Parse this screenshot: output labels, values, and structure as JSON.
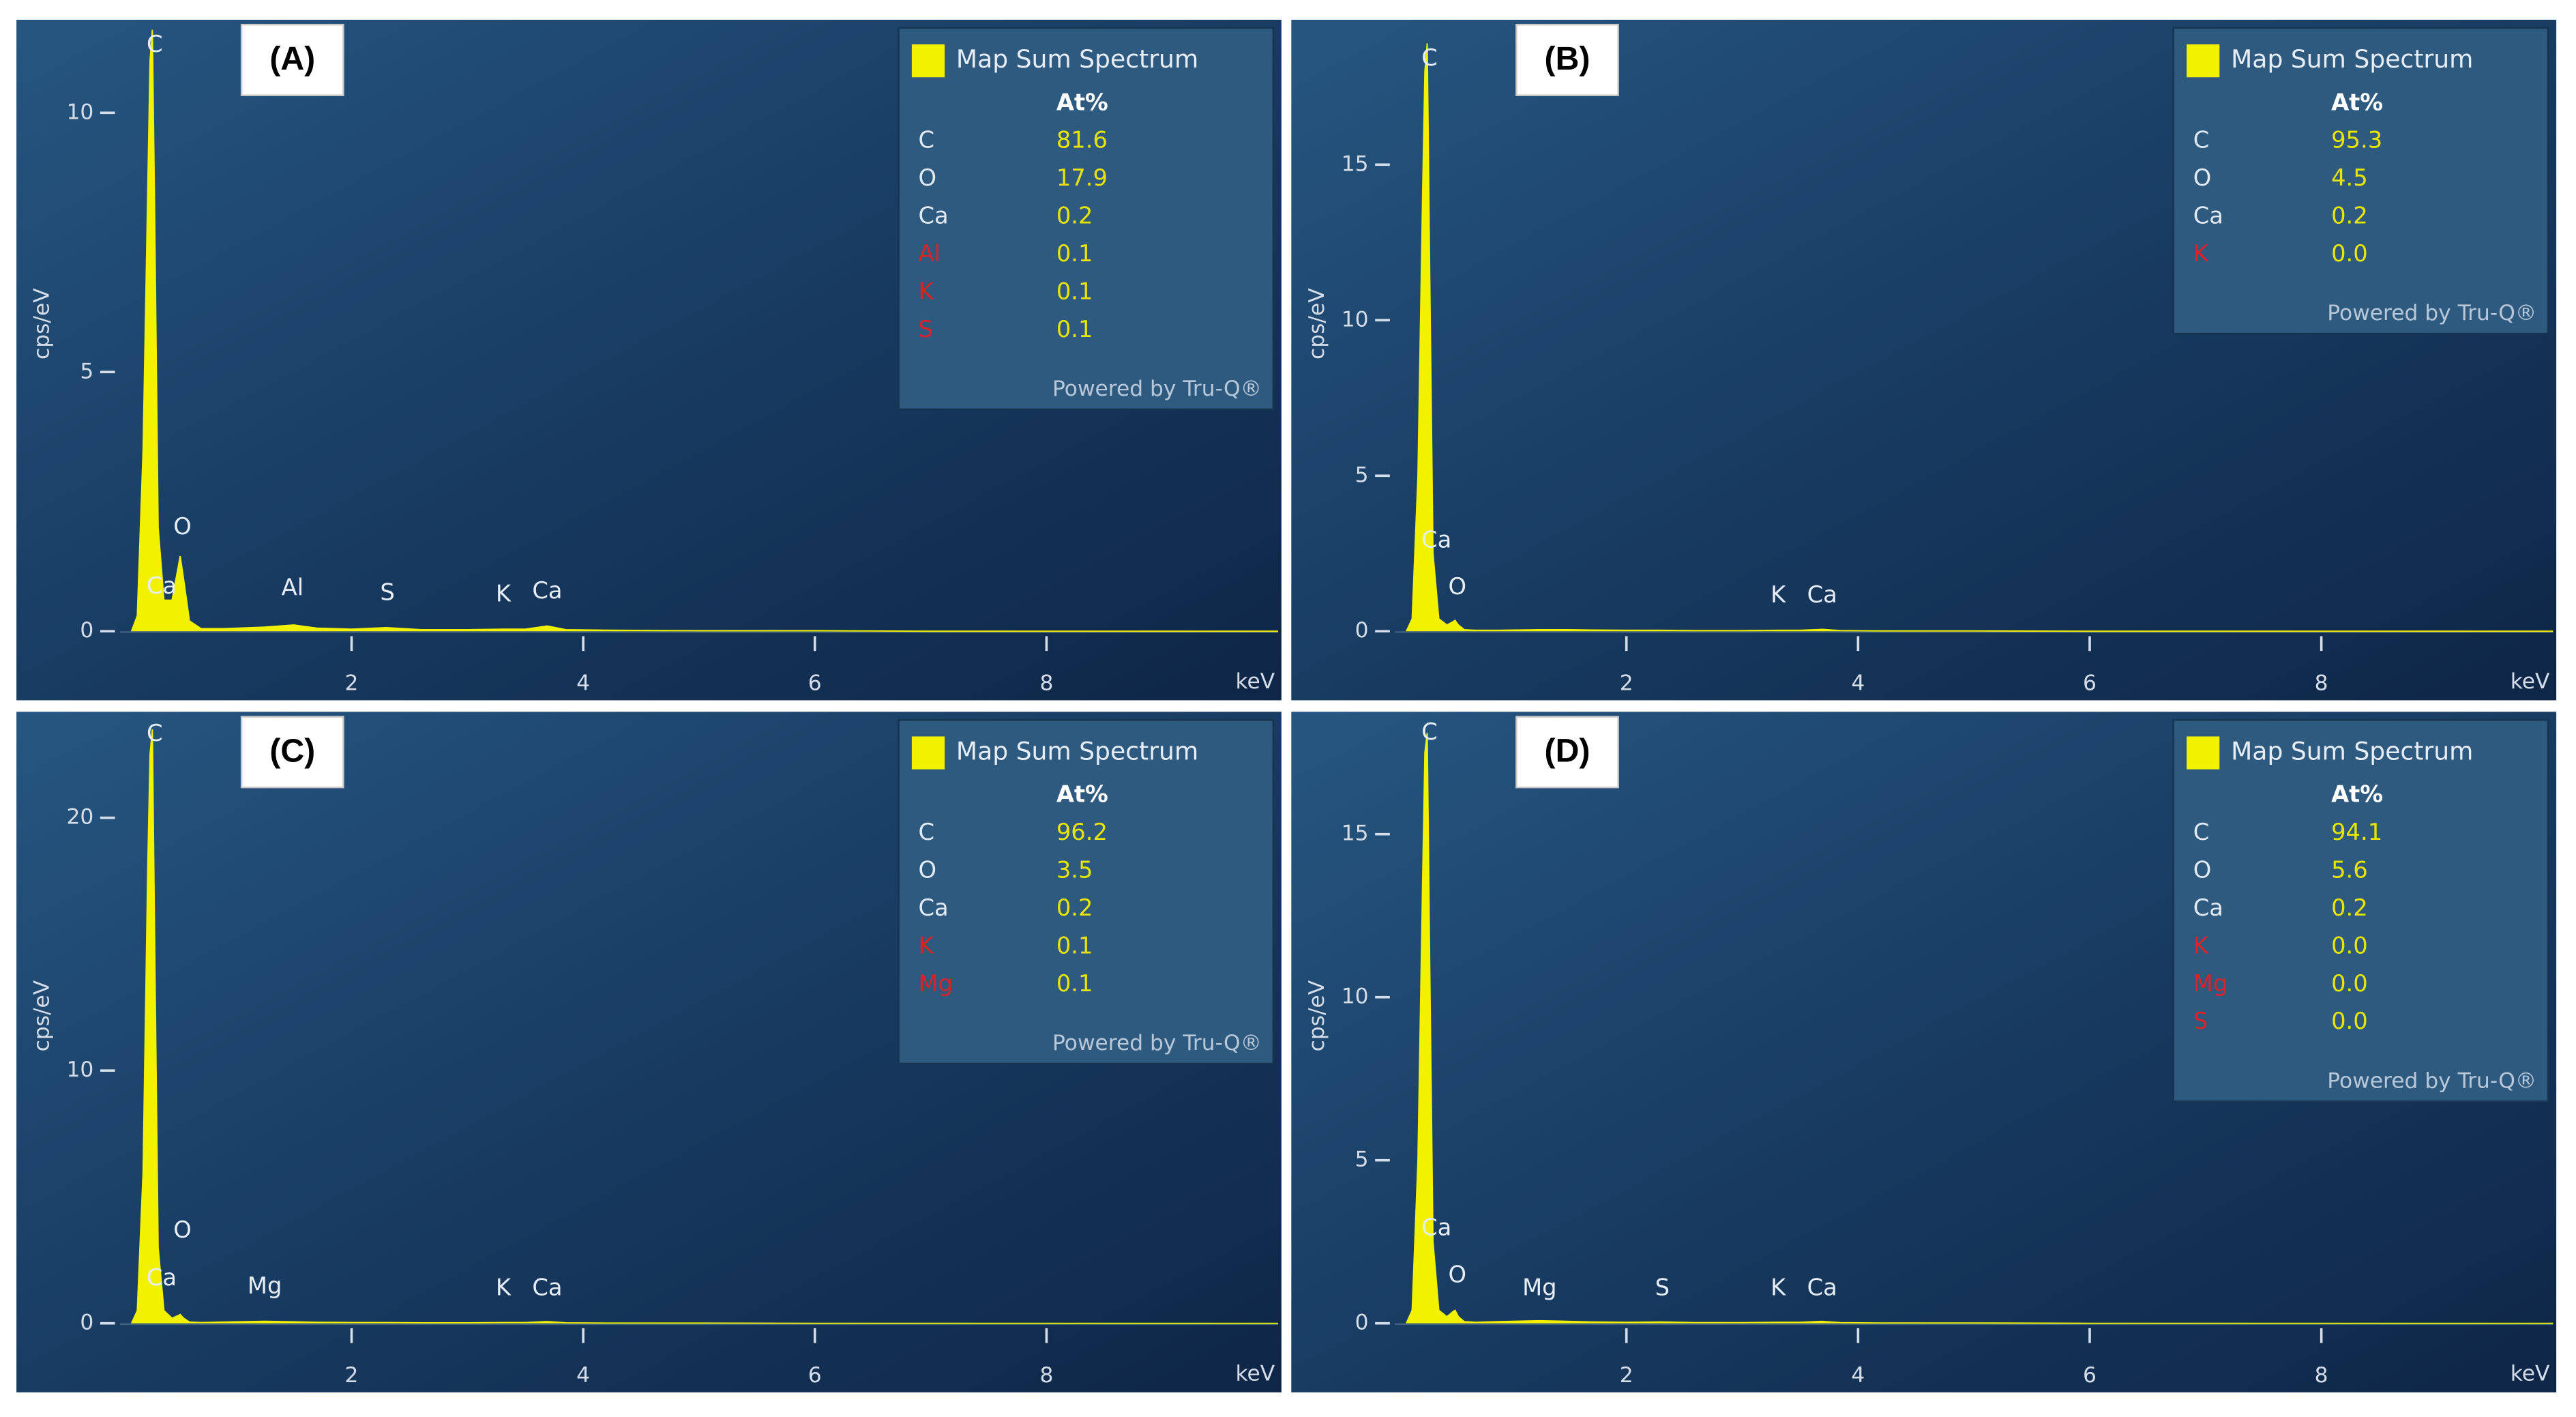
{
  "chart_data": [
    {
      "type": "area",
      "panel_label": "(A)",
      "ylabel": "cps/eV",
      "xlabel": "keV",
      "xlim": [
        0,
        10
      ],
      "xticks": [
        2,
        4,
        6,
        8
      ],
      "ylim": [
        0,
        11.7
      ],
      "yticks": [
        0,
        5,
        10
      ],
      "x": [
        0.1,
        0.15,
        0.2,
        0.24,
        0.26,
        0.28,
        0.3,
        0.33,
        0.38,
        0.45,
        0.5,
        0.52,
        0.55,
        0.6,
        0.7,
        0.9,
        1.25,
        1.5,
        1.7,
        2.0,
        2.3,
        2.6,
        3.0,
        3.31,
        3.5,
        3.69,
        3.85,
        4.2,
        5,
        6,
        7,
        8,
        9,
        10
      ],
      "series": [
        {
          "name": "Map Sum Spectrum",
          "color": "#f2f200",
          "values": [
            0,
            0.3,
            3.5,
            8.5,
            11,
            11.6,
            8,
            2,
            0.6,
            0.6,
            1.2,
            1.45,
            1.0,
            0.2,
            0.05,
            0.05,
            0.08,
            0.12,
            0.06,
            0.04,
            0.07,
            0.03,
            0.03,
            0.04,
            0.04,
            0.1,
            0.03,
            0.02,
            0.01,
            0.01,
            0,
            0,
            0,
            0
          ]
        }
      ],
      "peak_labels": [
        {
          "label": "C",
          "x": 0.3,
          "y": 11.3
        },
        {
          "label": "Ca",
          "x": 0.36,
          "y": 0.85
        },
        {
          "label": "O",
          "x": 0.54,
          "y": 2.0
        },
        {
          "label": "Al",
          "x": 1.49,
          "y": 0.82
        },
        {
          "label": "S",
          "x": 2.31,
          "y": 0.73
        },
        {
          "label": "K",
          "x": 3.31,
          "y": 0.7
        },
        {
          "label": "Ca",
          "x": 3.69,
          "y": 0.76
        }
      ],
      "quant": {
        "header": "At%",
        "elements": [
          "C",
          "O",
          "Ca",
          "Al",
          "K",
          "S"
        ],
        "element_colors": [
          "#e2e9f1",
          "#e2e9f1",
          "#e2e9f1",
          "#d8232a",
          "#d8232a",
          "#d8232a"
        ],
        "values": [
          81.6,
          17.9,
          0.2,
          0.1,
          0.1,
          0.1
        ],
        "value_labels": [
          "81.6",
          "17.9",
          "0.2",
          "0.1",
          "0.1",
          "0.1"
        ],
        "footer": "Powered by Tru-Q®"
      }
    },
    {
      "type": "area",
      "panel_label": "(B)",
      "ylabel": "cps/eV",
      "xlabel": "keV",
      "xlim": [
        0,
        10
      ],
      "xticks": [
        2,
        4,
        6,
        8
      ],
      "ylim": [
        0,
        19.5
      ],
      "yticks": [
        0,
        5,
        10,
        15
      ],
      "x": [
        0.1,
        0.15,
        0.2,
        0.24,
        0.26,
        0.28,
        0.3,
        0.33,
        0.38,
        0.45,
        0.5,
        0.52,
        0.55,
        0.6,
        0.7,
        0.9,
        1.25,
        1.5,
        1.7,
        2.0,
        2.3,
        2.6,
        3.0,
        3.31,
        3.5,
        3.69,
        3.85,
        4.2,
        5,
        6,
        7,
        8,
        9,
        10
      ],
      "series": [
        {
          "name": "Map Sum Spectrum",
          "color": "#f2f200",
          "values": [
            0,
            0.4,
            5,
            14,
            18,
            18.9,
            12,
            2.5,
            0.4,
            0.2,
            0.3,
            0.35,
            0.2,
            0.05,
            0.03,
            0.03,
            0.05,
            0.05,
            0.04,
            0.03,
            0.03,
            0.02,
            0.02,
            0.03,
            0.03,
            0.06,
            0.02,
            0.01,
            0.01,
            0,
            0,
            0,
            0,
            0
          ]
        }
      ],
      "peak_labels": [
        {
          "label": "C",
          "x": 0.3,
          "y": 18.4
        },
        {
          "label": "Ca",
          "x": 0.36,
          "y": 2.9
        },
        {
          "label": "O",
          "x": 0.54,
          "y": 1.4
        },
        {
          "label": "K",
          "x": 3.31,
          "y": 1.13
        },
        {
          "label": "Ca",
          "x": 3.69,
          "y": 1.13
        }
      ],
      "quant": {
        "header": "At%",
        "elements": [
          "C",
          "O",
          "Ca",
          "K"
        ],
        "element_colors": [
          "#e2e9f1",
          "#e2e9f1",
          "#e2e9f1",
          "#d8232a"
        ],
        "values": [
          95.3,
          4.5,
          0.2,
          0
        ],
        "value_labels": [
          "95.3",
          "4.5",
          "0.2",
          "0.0"
        ],
        "footer": "Powered by Tru-Q®"
      }
    },
    {
      "type": "area",
      "panel_label": "(C)",
      "ylabel": "cps/eV",
      "xlabel": "keV",
      "xlim": [
        0,
        10
      ],
      "xticks": [
        2,
        4,
        6,
        8
      ],
      "ylim": [
        0,
        24
      ],
      "yticks": [
        0,
        10,
        20
      ],
      "x": [
        0.1,
        0.15,
        0.2,
        0.24,
        0.26,
        0.28,
        0.3,
        0.33,
        0.38,
        0.45,
        0.5,
        0.52,
        0.55,
        0.6,
        0.7,
        0.9,
        1.25,
        1.5,
        1.7,
        2.0,
        2.3,
        2.6,
        3.0,
        3.31,
        3.5,
        3.69,
        3.85,
        4.2,
        5,
        6,
        7,
        8,
        9,
        10
      ],
      "series": [
        {
          "name": "Map Sum Spectrum",
          "color": "#f2f200",
          "values": [
            0,
            0.5,
            6,
            18,
            22.5,
            23.5,
            15,
            3,
            0.5,
            0.2,
            0.3,
            0.35,
            0.2,
            0.05,
            0.03,
            0.05,
            0.08,
            0.06,
            0.04,
            0.03,
            0.03,
            0.02,
            0.02,
            0.03,
            0.03,
            0.07,
            0.02,
            0.01,
            0.01,
            0,
            0,
            0,
            0,
            0
          ]
        }
      ],
      "peak_labels": [
        {
          "label": "C",
          "x": 0.3,
          "y": 23.3
        },
        {
          "label": "O",
          "x": 0.54,
          "y": 3.65
        },
        {
          "label": "Ca",
          "x": 0.36,
          "y": 1.76
        },
        {
          "label": "Mg",
          "x": 1.25,
          "y": 1.43
        },
        {
          "label": "K",
          "x": 3.31,
          "y": 1.37
        },
        {
          "label": "Ca",
          "x": 3.69,
          "y": 1.37
        }
      ],
      "quant": {
        "header": "At%",
        "elements": [
          "C",
          "O",
          "Ca",
          "K",
          "Mg"
        ],
        "element_colors": [
          "#e2e9f1",
          "#e2e9f1",
          "#e2e9f1",
          "#d8232a",
          "#d8232a"
        ],
        "values": [
          96.2,
          3.5,
          0.2,
          0.1,
          0.1
        ],
        "value_labels": [
          "96.2",
          "3.5",
          "0.2",
          "0.1",
          "0.1"
        ],
        "footer": "Powered by Tru-Q®"
      }
    },
    {
      "type": "area",
      "panel_label": "(D)",
      "ylabel": "cps/eV",
      "xlabel": "keV",
      "xlim": [
        0,
        10
      ],
      "xticks": [
        2,
        4,
        6,
        8
      ],
      "ylim": [
        0,
        18.6
      ],
      "yticks": [
        0,
        5,
        10,
        15
      ],
      "x": [
        0.1,
        0.15,
        0.2,
        0.24,
        0.26,
        0.28,
        0.3,
        0.33,
        0.38,
        0.45,
        0.5,
        0.52,
        0.55,
        0.6,
        0.7,
        0.9,
        1.25,
        1.5,
        1.7,
        2.0,
        2.3,
        2.6,
        3.0,
        3.31,
        3.5,
        3.69,
        3.85,
        4.2,
        5,
        6,
        7,
        8,
        9,
        10
      ],
      "series": [
        {
          "name": "Map Sum Spectrum",
          "color": "#f2f200",
          "values": [
            0,
            0.4,
            5,
            13.5,
            17.5,
            18.1,
            11.5,
            2.5,
            0.4,
            0.2,
            0.35,
            0.4,
            0.2,
            0.05,
            0.03,
            0.05,
            0.08,
            0.06,
            0.04,
            0.03,
            0.04,
            0.02,
            0.02,
            0.03,
            0.03,
            0.06,
            0.02,
            0.01,
            0.01,
            0,
            0,
            0,
            0,
            0
          ]
        }
      ],
      "peak_labels": [
        {
          "label": "C",
          "x": 0.3,
          "y": 18.1
        },
        {
          "label": "Ca",
          "x": 0.36,
          "y": 2.9
        },
        {
          "label": "O",
          "x": 0.54,
          "y": 1.46
        },
        {
          "label": "Mg",
          "x": 1.25,
          "y": 1.06
        },
        {
          "label": "S",
          "x": 2.31,
          "y": 1.06
        },
        {
          "label": "K",
          "x": 3.31,
          "y": 1.06
        },
        {
          "label": "Ca",
          "x": 3.69,
          "y": 1.06
        }
      ],
      "quant": {
        "header": "At%",
        "elements": [
          "C",
          "O",
          "Ca",
          "K",
          "Mg",
          "S"
        ],
        "element_colors": [
          "#e2e9f1",
          "#e2e9f1",
          "#e2e9f1",
          "#d8232a",
          "#d8232a",
          "#d8232a"
        ],
        "values": [
          94.1,
          5.6,
          0.2,
          0,
          0,
          0
        ],
        "value_labels": [
          "94.1",
          "5.6",
          "0.2",
          "0.0",
          "0.0",
          "0.0"
        ],
        "footer": "Powered by Tru-Q®"
      }
    }
  ]
}
